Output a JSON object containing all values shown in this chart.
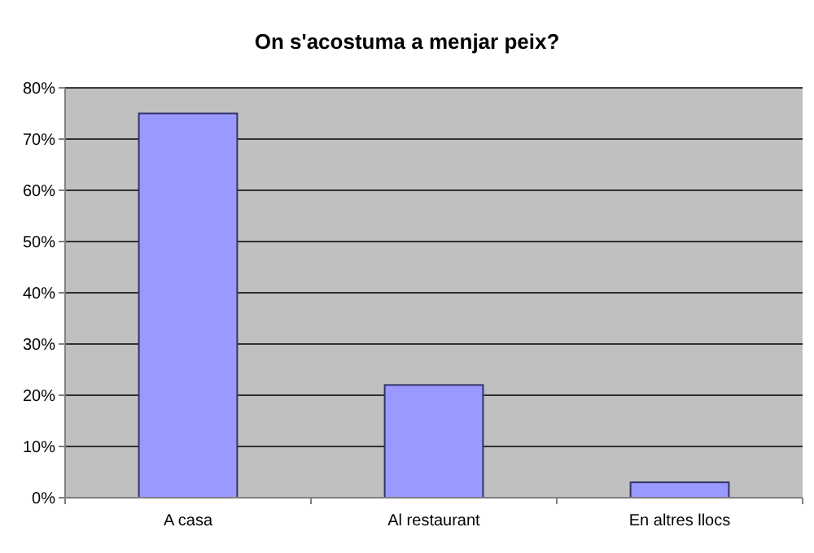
{
  "chart_data": {
    "type": "bar",
    "title": "On s'acostuma a menjar peix?",
    "categories": [
      "A casa",
      "Al restaurant",
      "En altres llocs"
    ],
    "values": [
      75,
      22,
      3
    ],
    "color": "#9999ff",
    "ylim": [
      0,
      80
    ],
    "yticks": [
      {
        "value": 0,
        "label": "0%"
      },
      {
        "value": 10,
        "label": "10%"
      },
      {
        "value": 20,
        "label": "20%"
      },
      {
        "value": 30,
        "label": "30%"
      },
      {
        "value": 40,
        "label": "40%"
      },
      {
        "value": 50,
        "label": "50%"
      },
      {
        "value": 60,
        "label": "60%"
      },
      {
        "value": 70,
        "label": "70%"
      },
      {
        "value": 80,
        "label": "80%"
      }
    ],
    "grid": "y"
  }
}
